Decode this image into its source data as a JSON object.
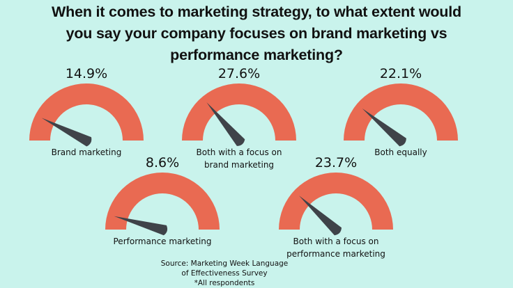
{
  "title_lines": [
    "When it comes to marketing strategy, to what extent would",
    "you say your company focuses on brand marketing vs",
    "performance marketing?"
  ],
  "source_lines": [
    "Source: Marketing Week Language",
    "of Effectiveness Survey",
    "*All respondents"
  ],
  "colors": {
    "background": "#c9f3ec",
    "gauge": "#e96a52",
    "needle": "#3f4349"
  },
  "chart_data": {
    "type": "gauge",
    "title": "When it comes to marketing strategy, to what extent would you say your company focuses on brand marketing vs performance marketing?",
    "unit": "%",
    "range": [
      0,
      100
    ],
    "items": [
      {
        "label_lines": [
          "Brand marketing"
        ],
        "value": 14.9,
        "value_label": "14.9%"
      },
      {
        "label_lines": [
          "Both with a focus on",
          "brand marketing"
        ],
        "value": 27.6,
        "value_label": "27.6%"
      },
      {
        "label_lines": [
          "Both equally"
        ],
        "value": 22.1,
        "value_label": "22.1%"
      },
      {
        "label_lines": [
          "Performance marketing"
        ],
        "value": 8.6,
        "value_label": "8.6%"
      },
      {
        "label_lines": [
          "Both with a focus on",
          "performance marketing"
        ],
        "value": 23.7,
        "value_label": "23.7%"
      }
    ]
  }
}
